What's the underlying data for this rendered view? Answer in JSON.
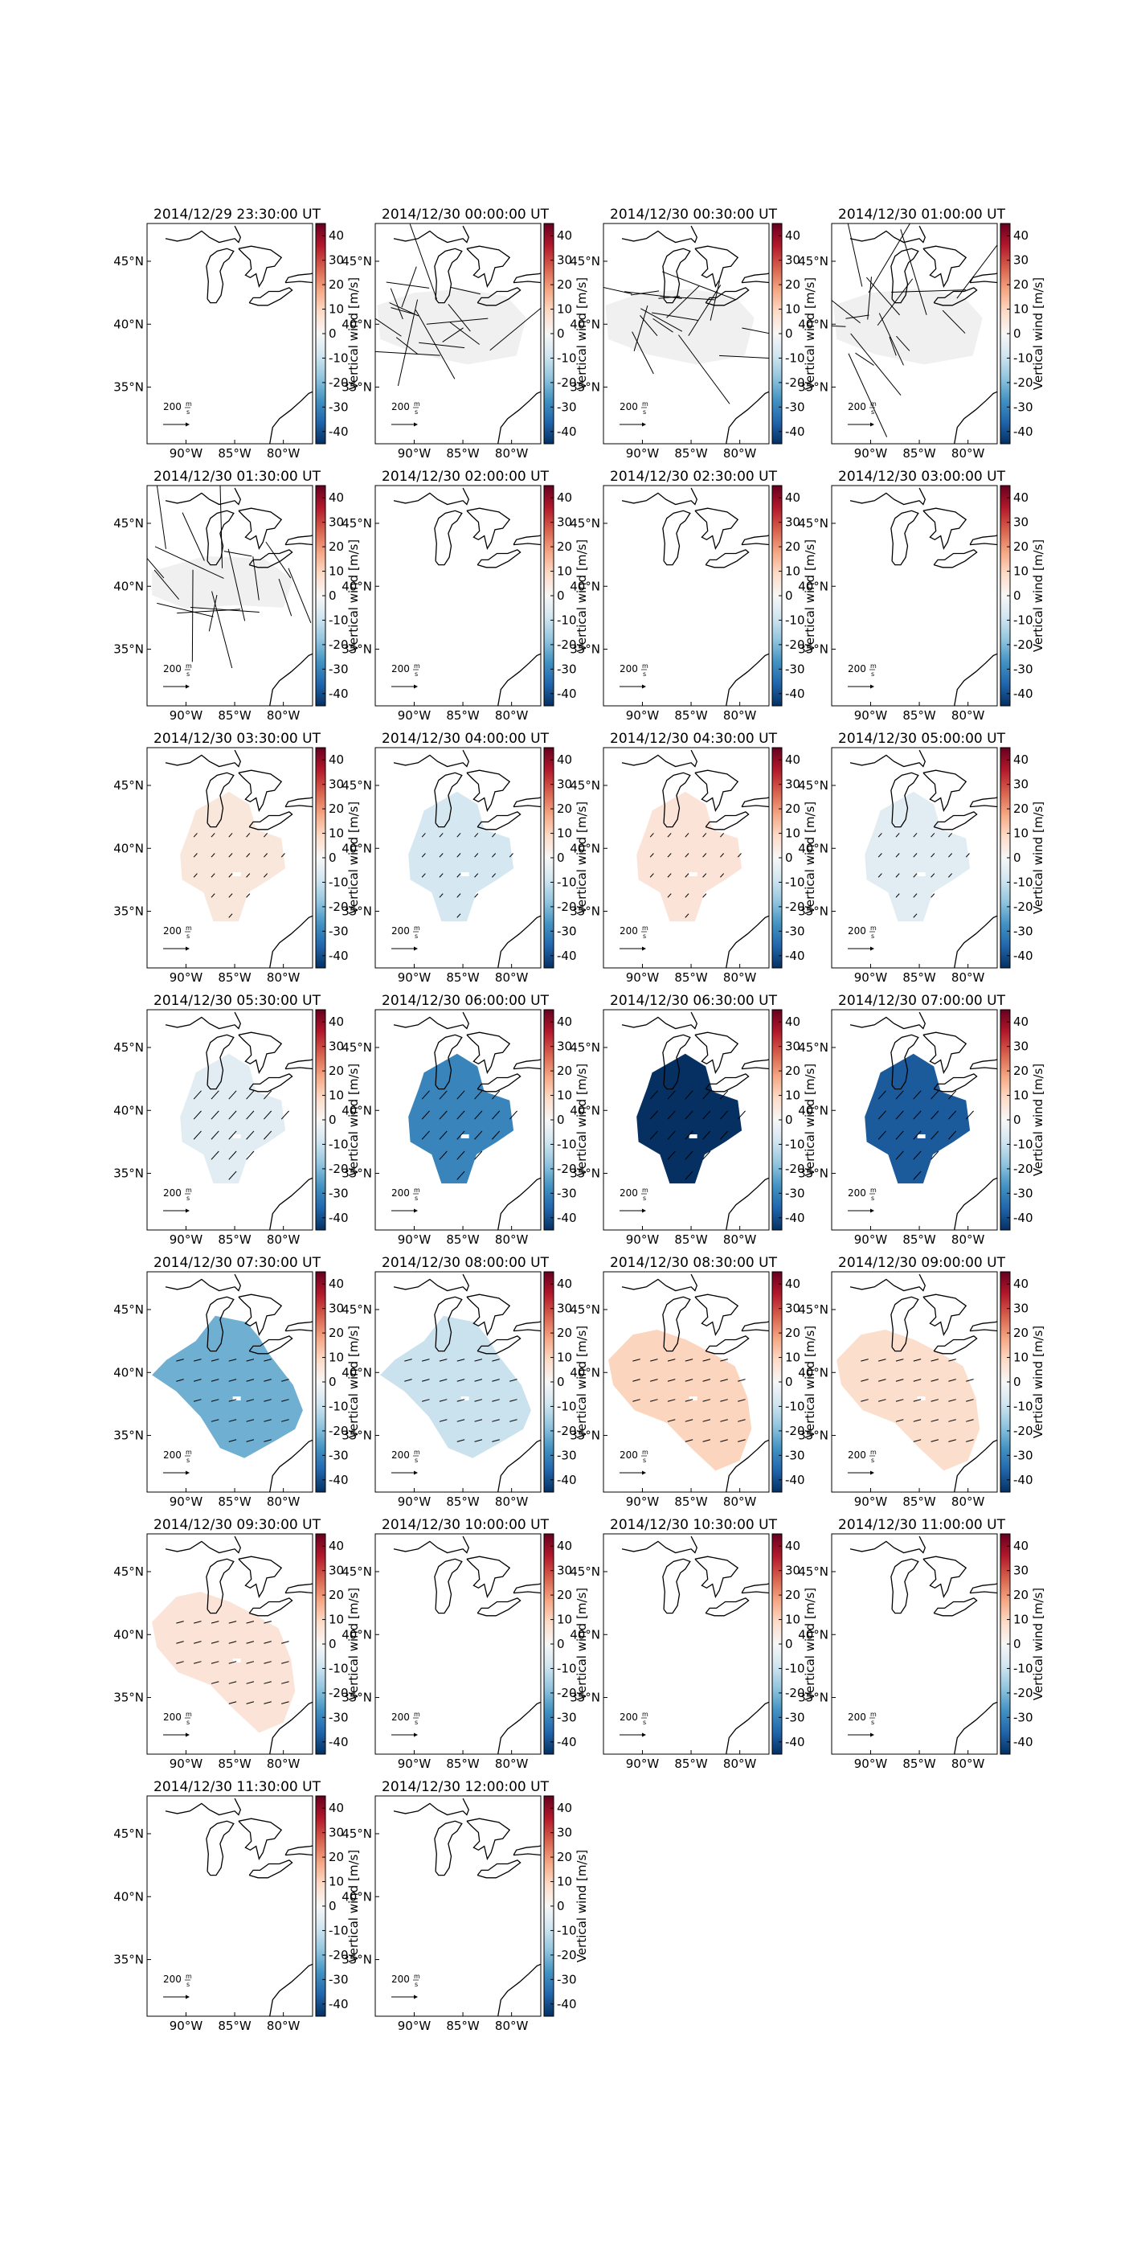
{
  "figure": {
    "grid": {
      "cols": 4,
      "rows": 7
    },
    "colorbar": {
      "label": "Vertical wind [m/s]",
      "range": [
        -45,
        45
      ],
      "ticks": [
        40,
        30,
        20,
        10,
        0,
        -10,
        -20,
        -30,
        -40
      ],
      "colormap": "RdBu_r"
    },
    "axes": {
      "xticks": [
        {
          "value": -90,
          "label": "90°W"
        },
        {
          "value": -85,
          "label": "85°W"
        },
        {
          "value": -80,
          "label": "80°W"
        }
      ],
      "yticks": [
        {
          "value": 45,
          "label": "45°N"
        },
        {
          "value": 40,
          "label": "40°N"
        },
        {
          "value": 35,
          "label": "35°N"
        }
      ],
      "xlim": [
        -94,
        -77
      ],
      "ylim": [
        30.5,
        48
      ]
    },
    "quiver_key": {
      "label": "200",
      "unit_top": "m",
      "unit_bottom": "s"
    },
    "colors": {
      "coast": "#000000",
      "frame": "#000000",
      "arrow": "#000000",
      "no_data_gray": "#f0f0f0"
    }
  },
  "chart_data": [
    {
      "type": "heatmap",
      "title": "2014/12/29 23:30:00 UT",
      "vertical_wind": null,
      "vectors": "none"
    },
    {
      "type": "heatmap",
      "title": "2014/12/30 00:00:00 UT",
      "vertical_wind": 0,
      "vectors": "chaotic"
    },
    {
      "type": "heatmap",
      "title": "2014/12/30 00:30:00 UT",
      "vertical_wind": 0,
      "vectors": "chaotic"
    },
    {
      "type": "heatmap",
      "title": "2014/12/30 01:00:00 UT",
      "vertical_wind": 0,
      "vectors": "chaotic"
    },
    {
      "type": "heatmap",
      "title": "2014/12/30 01:30:00 UT",
      "vertical_wind": 0,
      "vectors": "chaotic"
    },
    {
      "type": "heatmap",
      "title": "2014/12/30 02:00:00 UT",
      "vertical_wind": null,
      "vectors": "none"
    },
    {
      "type": "heatmap",
      "title": "2014/12/30 02:30:00 UT",
      "vertical_wind": null,
      "vectors": "none"
    },
    {
      "type": "heatmap",
      "title": "2014/12/30 03:00:00 UT",
      "vertical_wind": null,
      "vectors": "none"
    },
    {
      "type": "heatmap",
      "title": "2014/12/30 03:30:00 UT",
      "vertical_wind": 5,
      "vectors": "weak"
    },
    {
      "type": "heatmap",
      "title": "2014/12/30 04:00:00 UT",
      "vertical_wind": -8,
      "vectors": "weak"
    },
    {
      "type": "heatmap",
      "title": "2014/12/30 04:30:00 UT",
      "vertical_wind": 6,
      "vectors": "weak"
    },
    {
      "type": "heatmap",
      "title": "2014/12/30 05:00:00 UT",
      "vertical_wind": -5,
      "vectors": "weak"
    },
    {
      "type": "heatmap",
      "title": "2014/12/30 05:30:00 UT",
      "vertical_wind": -5,
      "vectors": "moderate"
    },
    {
      "type": "heatmap",
      "title": "2014/12/30 06:00:00 UT",
      "vertical_wind": -30,
      "vectors": "moderate"
    },
    {
      "type": "heatmap",
      "title": "2014/12/30 06:30:00 UT",
      "vertical_wind": -45,
      "vectors": "moderate"
    },
    {
      "type": "heatmap",
      "title": "2014/12/30 07:00:00 UT",
      "vertical_wind": -38,
      "vectors": "moderate"
    },
    {
      "type": "heatmap",
      "title": "2014/12/30 07:30:00 UT",
      "vertical_wind": -22,
      "vectors": "moderate"
    },
    {
      "type": "heatmap",
      "title": "2014/12/30 08:00:00 UT",
      "vertical_wind": -10,
      "vectors": "moderate"
    },
    {
      "type": "heatmap",
      "title": "2014/12/30 08:30:00 UT",
      "vertical_wind": 10,
      "vectors": "moderate"
    },
    {
      "type": "heatmap",
      "title": "2014/12/30 09:00:00 UT",
      "vertical_wind": 8,
      "vectors": "moderate"
    },
    {
      "type": "heatmap",
      "title": "2014/12/30 09:30:00 UT",
      "vertical_wind": 6,
      "vectors": "moderate"
    },
    {
      "type": "heatmap",
      "title": "2014/12/30 10:00:00 UT",
      "vertical_wind": null,
      "vectors": "none"
    },
    {
      "type": "heatmap",
      "title": "2014/12/30 10:30:00 UT",
      "vertical_wind": null,
      "vectors": "none"
    },
    {
      "type": "heatmap",
      "title": "2014/12/30 11:00:00 UT",
      "vertical_wind": null,
      "vectors": "none"
    },
    {
      "type": "heatmap",
      "title": "2014/12/30 11:30:00 UT",
      "vertical_wind": null,
      "vectors": "none"
    },
    {
      "type": "heatmap",
      "title": "2014/12/30 12:00:00 UT",
      "vertical_wind": null,
      "vectors": "none"
    }
  ]
}
